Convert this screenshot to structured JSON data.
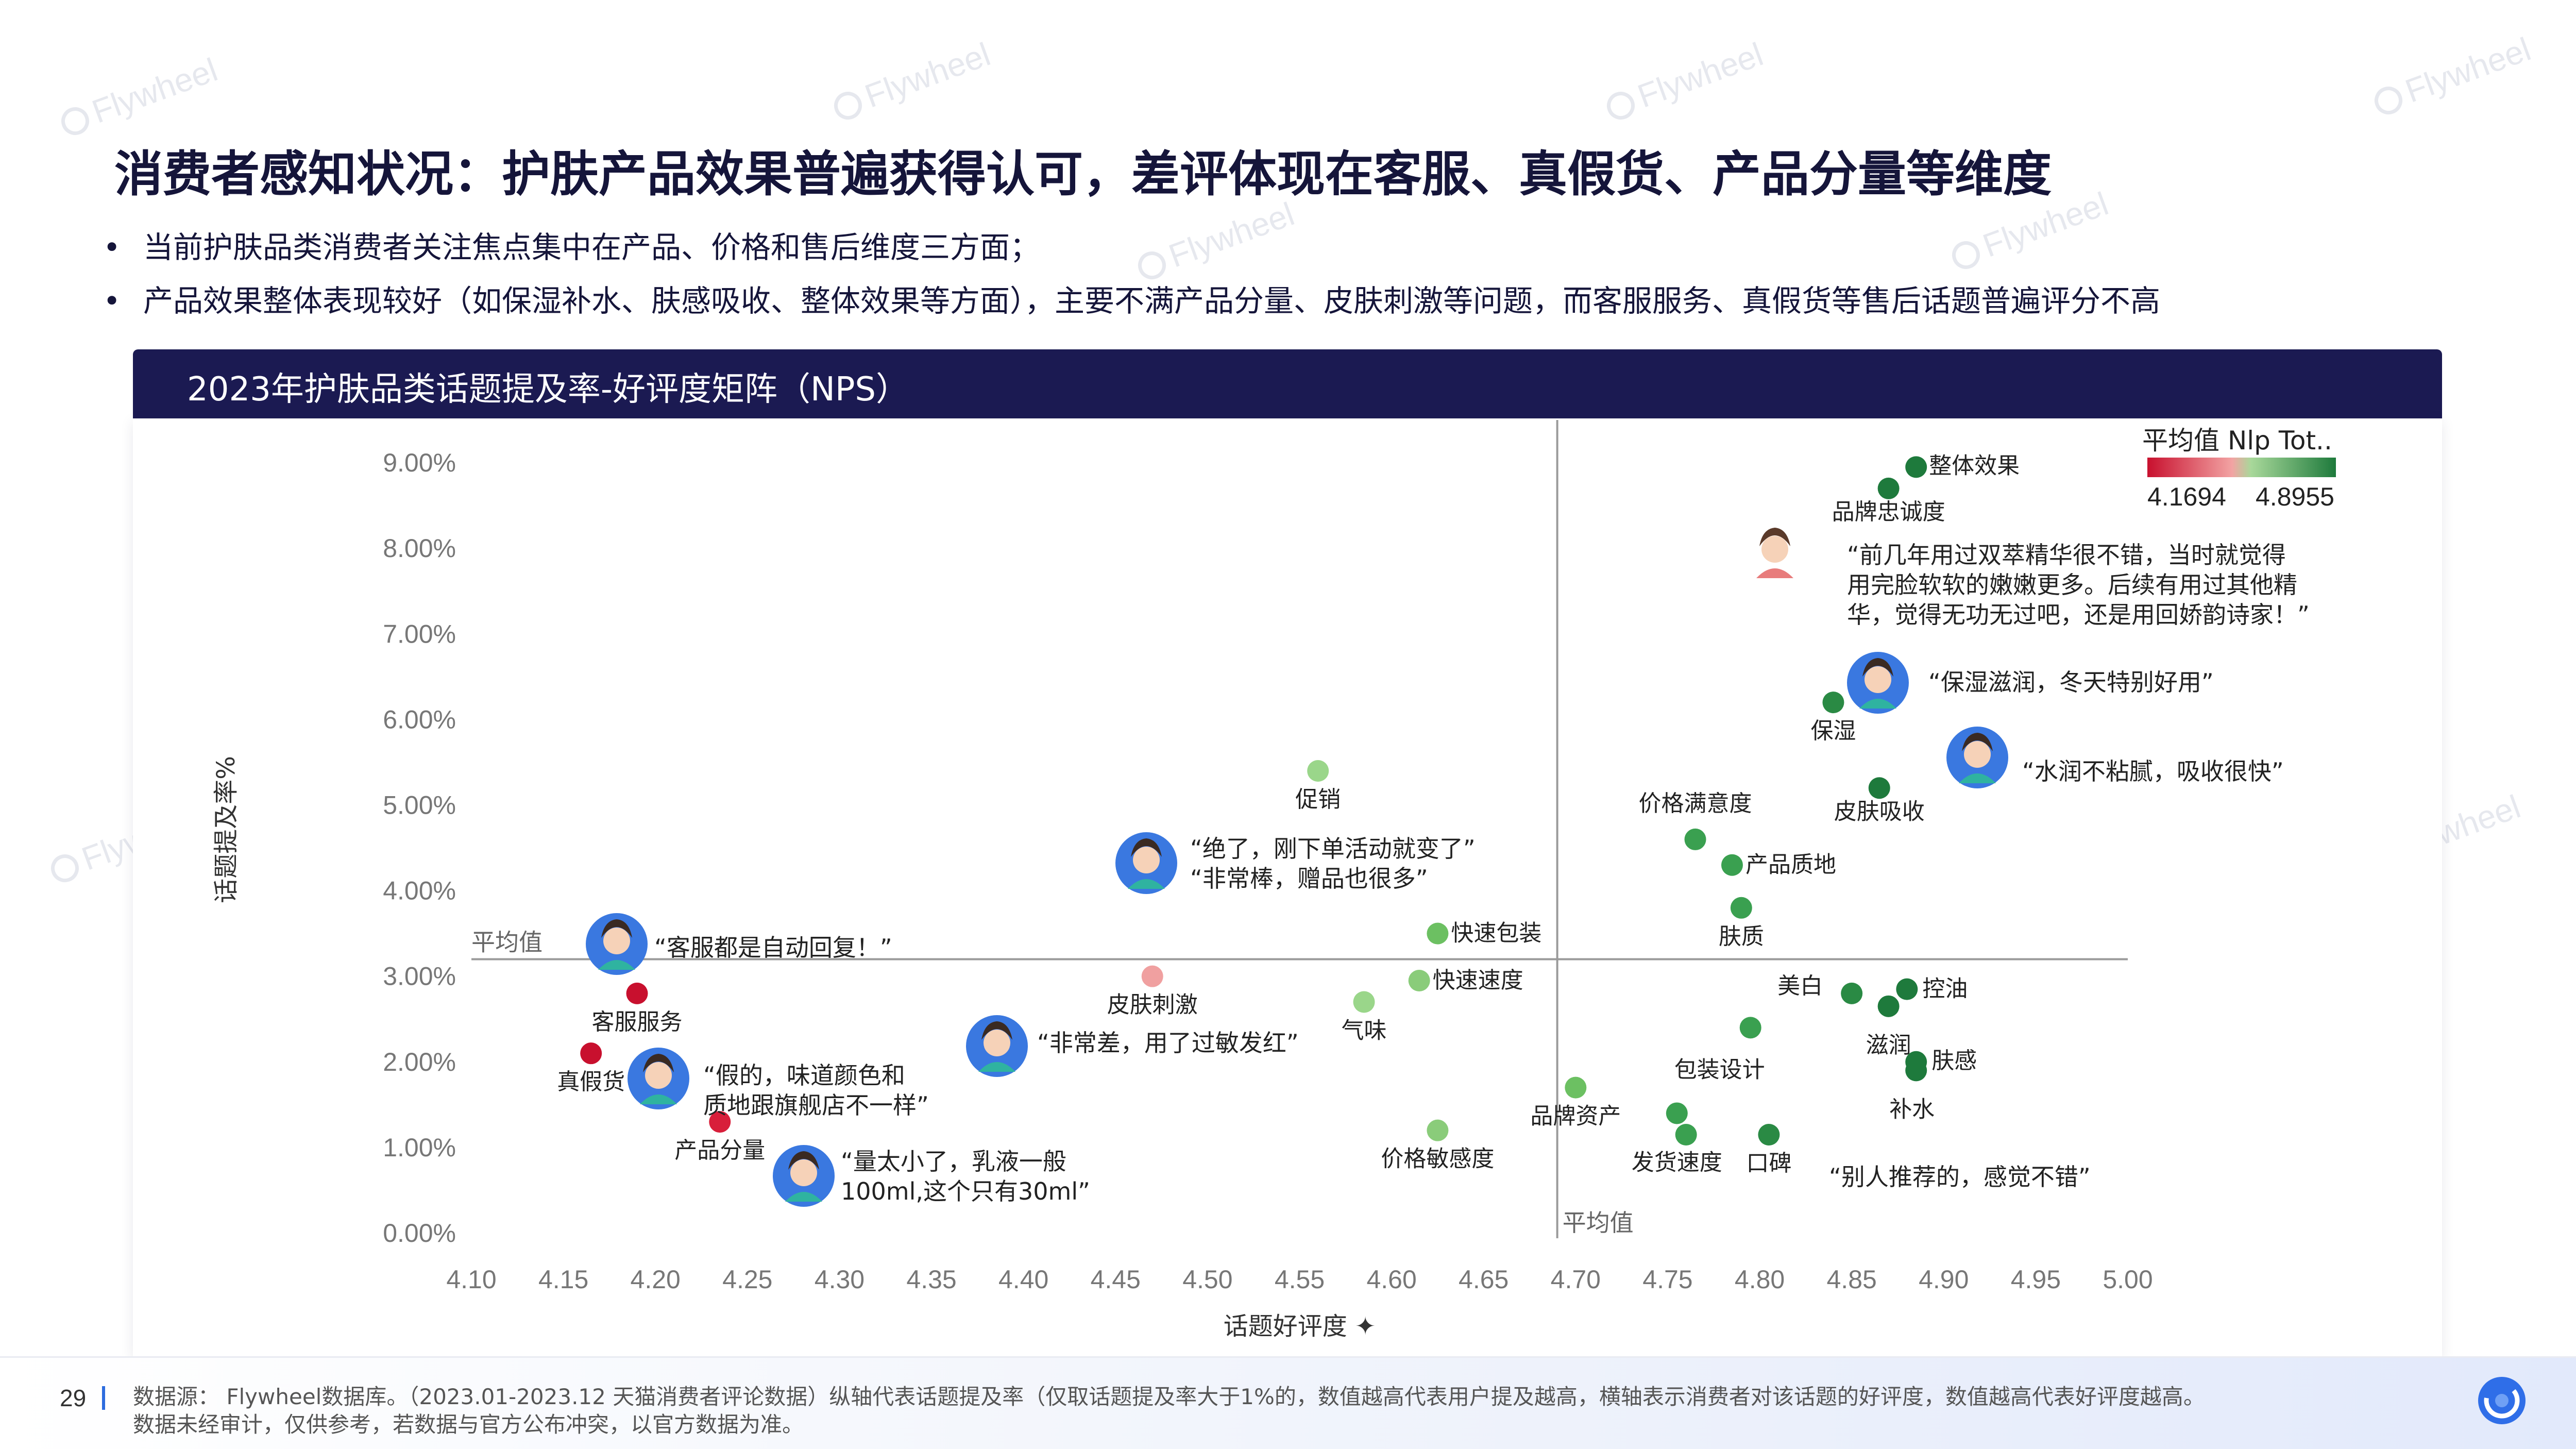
{
  "watermark": "Flywheel",
  "title": "消费者感知状况：护肤产品效果普遍获得认可，差评体现在客服、真假货、产品分量等维度",
  "bullets": [
    "当前护肤品类消费者关注焦点集中在产品、价格和售后维度三方面；",
    "产品效果整体表现较好（如保湿补水、肤感吸收、整体效果等方面），主要不满产品分量、皮肤刺激等问题，而客服服务、真假货等售后话题普遍评分不高"
  ],
  "chart_header": "2023年护肤品类话题提及率-好评度矩阵（NPS）",
  "legend": {
    "title": "平均值 Nlp Tot..",
    "min": "4.1694",
    "max": "4.8955",
    "min_color": "#c8102e",
    "max_color": "#1e7a3c"
  },
  "chart_data": {
    "type": "scatter",
    "xlabel": "话题好评度",
    "ylabel": "话题提及率%",
    "xlim": [
      4.1,
      5.0
    ],
    "ylim": [
      0.0,
      9.5
    ],
    "x_ticks": [
      "4.10",
      "4.15",
      "4.20",
      "4.25",
      "4.30",
      "4.35",
      "4.40",
      "4.45",
      "4.50",
      "4.55",
      "4.60",
      "4.65",
      "4.70",
      "4.75",
      "4.80",
      "4.85",
      "4.90",
      "4.95",
      "5.00"
    ],
    "y_ticks": [
      "0.00%",
      "1.00%",
      "2.00%",
      "3.00%",
      "4.00%",
      "5.00%",
      "6.00%",
      "7.00%",
      "8.00%",
      "9.00%"
    ],
    "avg_lines": {
      "x": 4.69,
      "y": 3.2,
      "label": "平均值"
    },
    "points": [
      {
        "label": "整体效果",
        "x": 4.885,
        "y": 8.95,
        "color": "#1e7a3c"
      },
      {
        "label": "品牌忠诚度",
        "x": 4.87,
        "y": 8.7,
        "color": "#1e7a3c"
      },
      {
        "label": "保湿",
        "x": 4.84,
        "y": 6.2,
        "color": "#2a8a44"
      },
      {
        "label": "皮肤吸收",
        "x": 4.865,
        "y": 5.2,
        "color": "#1e7a3c"
      },
      {
        "label": "价格满意度",
        "x": 4.765,
        "y": 4.6,
        "color": "#3aa050"
      },
      {
        "label": "产品质地",
        "x": 4.785,
        "y": 4.3,
        "color": "#3aa050"
      },
      {
        "label": "肤质",
        "x": 4.79,
        "y": 3.8,
        "color": "#3aa050"
      },
      {
        "label": "促销",
        "x": 4.56,
        "y": 5.4,
        "color": "#9ad68a"
      },
      {
        "label": "快速包装",
        "x": 4.625,
        "y": 3.5,
        "color": "#6cc062"
      },
      {
        "label": "快速速度",
        "x": 4.615,
        "y": 2.95,
        "color": "#8acc7a"
      },
      {
        "label": "气味",
        "x": 4.585,
        "y": 2.7,
        "color": "#9ad68a"
      },
      {
        "label": "皮肤刺激",
        "x": 4.47,
        "y": 3.0,
        "color": "#f0a0a0"
      },
      {
        "label": "客服服务",
        "x": 4.19,
        "y": 2.8,
        "color": "#c8102e"
      },
      {
        "label": "真假货",
        "x": 4.165,
        "y": 2.1,
        "color": "#c8102e"
      },
      {
        "label": "产品分量",
        "x": 4.235,
        "y": 1.3,
        "color": "#d81e3a"
      },
      {
        "label": "价格敏感度",
        "x": 4.625,
        "y": 1.2,
        "color": "#8acc7a"
      },
      {
        "label": "品牌资产",
        "x": 4.7,
        "y": 1.7,
        "color": "#6cc062"
      },
      {
        "label": "包装设计",
        "x": 4.795,
        "y": 2.4,
        "color": "#3aa050"
      },
      {
        "label": "发货速度",
        "x": 4.755,
        "y": 1.4,
        "color": "#3aa050"
      },
      {
        "label": "",
        "x": 4.76,
        "y": 1.15,
        "color": "#3aa050"
      },
      {
        "label": "口碑",
        "x": 4.805,
        "y": 1.15,
        "color": "#2a8a44"
      },
      {
        "label": "美白",
        "x": 4.85,
        "y": 2.8,
        "color": "#2a8a44"
      },
      {
        "label": "控油",
        "x": 4.88,
        "y": 2.85,
        "color": "#1e7a3c"
      },
      {
        "label": "滋润",
        "x": 4.87,
        "y": 2.65,
        "color": "#1e7a3c"
      },
      {
        "label": "肤感",
        "x": 4.885,
        "y": 2.0,
        "color": "#1e7a3c"
      },
      {
        "label": "补水",
        "x": 4.885,
        "y": 1.9,
        "color": "#1e7a3c"
      }
    ]
  },
  "quotes": [
    {
      "lines": [
        "“前几年用过双萃精华很不错，当时就觉得",
        "用完脸软软的嫩嫩更多。后续有用过其他精",
        "华，觉得无功无过吧，还是用回娇韵诗家！”"
      ]
    },
    {
      "lines": [
        "“保湿滋润，冬天特别好用”"
      ]
    },
    {
      "lines": [
        "“水润不粘腻，吸收很快”"
      ]
    },
    {
      "lines": [
        "“绝了，刚下单活动就变了”",
        "“非常棒，赠品也很多”"
      ]
    },
    {
      "lines": [
        "“客服都是自动回复！”"
      ]
    },
    {
      "lines": [
        "“假的，味道颜色和",
        "质地跟旗舰店不一样”"
      ]
    },
    {
      "lines": [
        "“非常差，用了过敏发红”"
      ]
    },
    {
      "lines": [
        "“量太小了，乳液一般",
        "100ml,这个只有30ml”"
      ]
    },
    {
      "lines": [
        "“别人推荐的，感觉不错”"
      ]
    }
  ],
  "footer": {
    "page": "29",
    "note_lines": [
      "数据源： Flywheel数据库。（2023.01-2023.12 天猫消费者评论数据）纵轴代表话题提及率（仅取话题提及率大于1%的，数值越高代表用户提及越高，横轴表示消费者对该话题的好评度，数值越高代表好评度越高。",
      "数据未经审计，仅供参考，若数据与官方公布冲突，以官方数据为准。"
    ]
  }
}
